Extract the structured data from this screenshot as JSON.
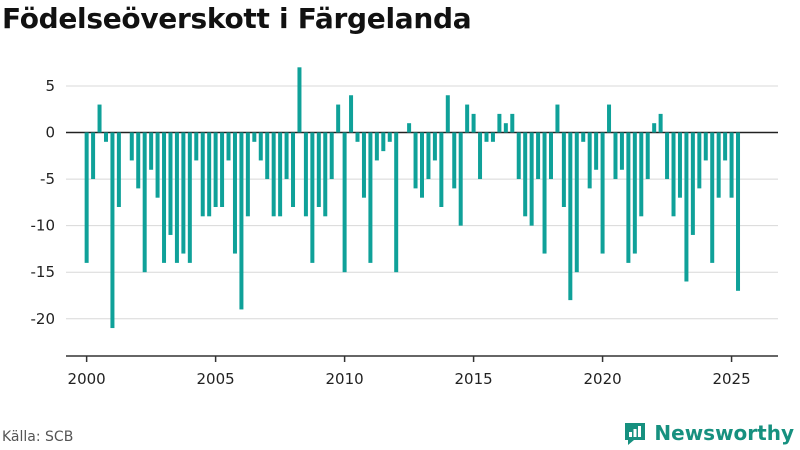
{
  "title": "Födelseöverskott i Färgelanda",
  "source": "Källa: SCB",
  "brand": {
    "name": "Newsworthy",
    "icon": "newsworthy-logo-icon"
  },
  "colors": {
    "bar": "#0fa199",
    "grid": "#d8d8d8",
    "zero_line": "#222222",
    "brand": "#16907f"
  },
  "chart_data": {
    "type": "bar",
    "title": "Födelseöverskott i Färgelanda",
    "xlabel": "",
    "ylabel": "",
    "frequency": "quarterly",
    "x": [
      "2000Q1",
      "2000Q2",
      "2000Q3",
      "2000Q4",
      "2001Q1",
      "2001Q2",
      "2001Q3",
      "2001Q4",
      "2002Q1",
      "2002Q2",
      "2002Q3",
      "2002Q4",
      "2003Q1",
      "2003Q2",
      "2003Q3",
      "2003Q4",
      "2004Q1",
      "2004Q2",
      "2004Q3",
      "2004Q4",
      "2005Q1",
      "2005Q2",
      "2005Q3",
      "2005Q4",
      "2006Q1",
      "2006Q2",
      "2006Q3",
      "2006Q4",
      "2007Q1",
      "2007Q2",
      "2007Q3",
      "2007Q4",
      "2008Q1",
      "2008Q2",
      "2008Q3",
      "2008Q4",
      "2009Q1",
      "2009Q2",
      "2009Q3",
      "2009Q4",
      "2010Q1",
      "2010Q2",
      "2010Q3",
      "2010Q4",
      "2011Q1",
      "2011Q2",
      "2011Q3",
      "2011Q4",
      "2012Q1",
      "2012Q2",
      "2012Q3",
      "2012Q4",
      "2013Q1",
      "2013Q2",
      "2013Q3",
      "2013Q4",
      "2014Q1",
      "2014Q2",
      "2014Q3",
      "2014Q4",
      "2015Q1",
      "2015Q2",
      "2015Q3",
      "2015Q4",
      "2016Q1",
      "2016Q2",
      "2016Q3",
      "2016Q4",
      "2017Q1",
      "2017Q2",
      "2017Q3",
      "2017Q4",
      "2018Q1",
      "2018Q2",
      "2018Q3",
      "2018Q4",
      "2019Q1",
      "2019Q2",
      "2019Q3",
      "2019Q4",
      "2020Q1",
      "2020Q2",
      "2020Q3",
      "2020Q4",
      "2021Q1",
      "2021Q2",
      "2021Q3",
      "2021Q4",
      "2022Q1",
      "2022Q2",
      "2022Q3",
      "2022Q4",
      "2023Q1",
      "2023Q2",
      "2023Q3",
      "2023Q4",
      "2024Q1",
      "2024Q2",
      "2024Q3",
      "2024Q4",
      "2025Q1",
      "2025Q2"
    ],
    "values": [
      -14,
      -5,
      3,
      -1,
      -21,
      -8,
      0,
      -3,
      -6,
      -15,
      -4,
      -7,
      -14,
      -11,
      -14,
      -13,
      -14,
      -3,
      -9,
      -9,
      -8,
      -8,
      -3,
      -13,
      -19,
      -9,
      -1,
      -3,
      -5,
      -9,
      -9,
      -5,
      -8,
      7,
      -9,
      -14,
      -8,
      -9,
      -5,
      3,
      -15,
      4,
      -1,
      -7,
      -14,
      -3,
      -2,
      -1,
      -15,
      0,
      1,
      -6,
      -7,
      -5,
      -3,
      -8,
      4,
      -6,
      -10,
      3,
      2,
      -5,
      -1,
      -1,
      2,
      1,
      2,
      -5,
      -9,
      -10,
      -5,
      -13,
      -5,
      3,
      -8,
      -18,
      -15,
      -1,
      -6,
      -4,
      -13,
      3,
      -5,
      -4,
      -14,
      -13,
      -9,
      -5,
      1,
      2,
      -5,
      -9,
      -7,
      -16,
      -11,
      -6,
      -3,
      -14,
      -7,
      -3,
      -7,
      -17
    ],
    "xlim": [
      1999.2,
      2026.8
    ],
    "ylim": [
      -24,
      8
    ],
    "yticks": [
      5,
      0,
      -5,
      -10,
      -15,
      -20
    ],
    "xticks": [
      2000,
      2005,
      2010,
      2015,
      2020,
      2025
    ],
    "grid": true,
    "legend": "none"
  }
}
